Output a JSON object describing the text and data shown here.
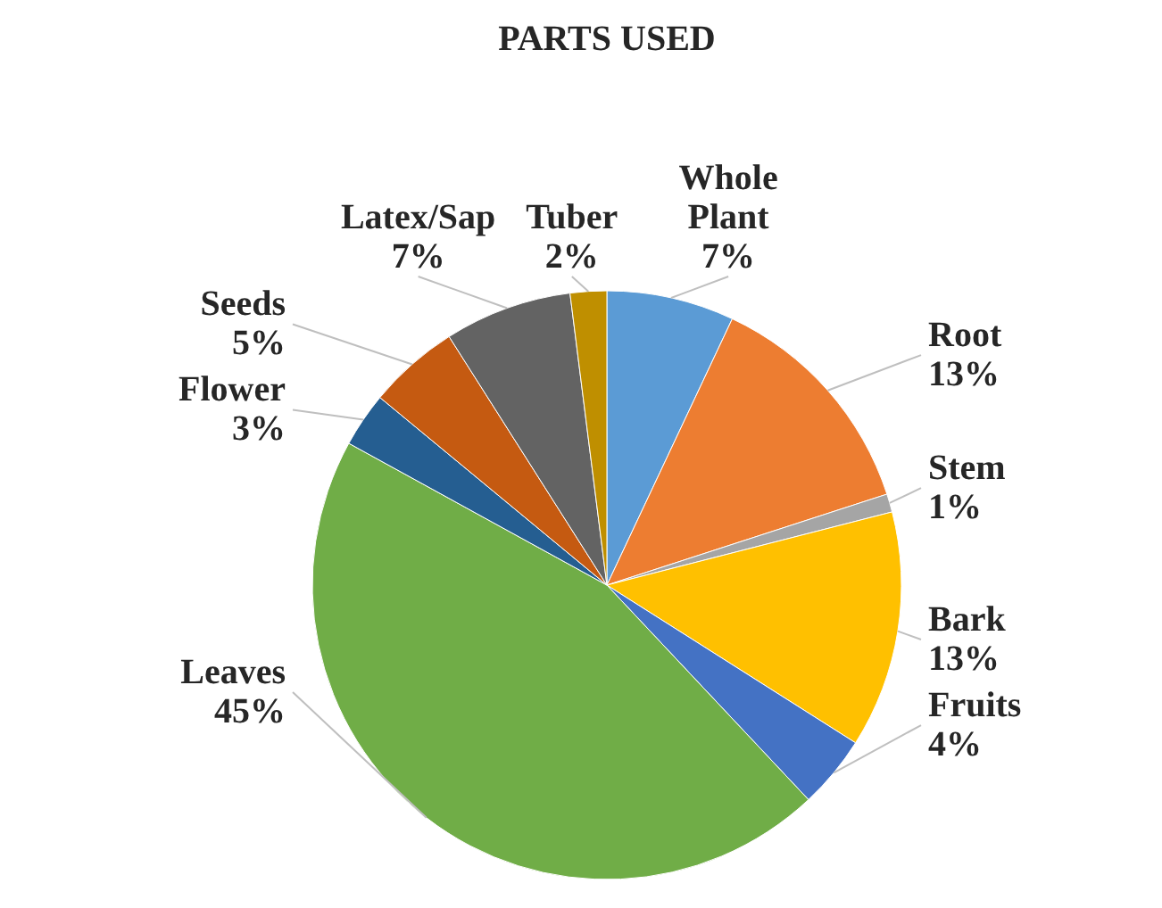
{
  "chart_data": {
    "type": "pie",
    "title": "PARTS USED",
    "categories": [
      "Whole Plant",
      "Root",
      "Stem",
      "Bark",
      "Fruits",
      "Leaves",
      "Flower",
      "Seeds",
      "Latex/Sap",
      "Tuber"
    ],
    "values": [
      7,
      13,
      1,
      13,
      4,
      45,
      3,
      5,
      7,
      2
    ],
    "value_labels": [
      "7%",
      "13%",
      "1%",
      "13%",
      "4%",
      "45%",
      "3%",
      "5%",
      "7%",
      "2%"
    ],
    "colors": [
      "#5b9bd5",
      "#ed7d31",
      "#a5a5a5",
      "#ffc000",
      "#4472c4",
      "#70ad47",
      "#255e91",
      "#c55a11",
      "#636363",
      "#bf8f00"
    ]
  }
}
